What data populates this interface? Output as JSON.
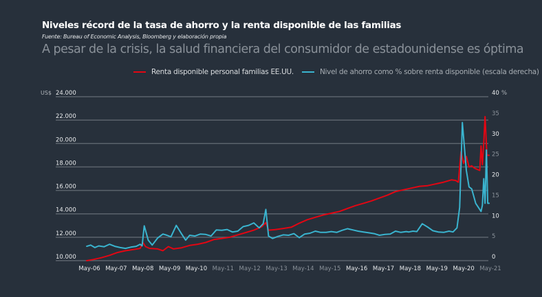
{
  "header": {
    "title": "Niveles récord de la tasa de ahorro y la renta disponible de las familias",
    "source": "Fuente: Bureau of Economic Analysis, Bloomberg y elaboración propia",
    "subtitle": "A pesar de la crisis, la salud financiera del consumidor de estadounidense es óptima"
  },
  "colors": {
    "background": "#27303b",
    "red_series": "#e30613",
    "cyan_series": "#3ab4cf",
    "grid": "#5b636c"
  },
  "chart_data": {
    "type": "line",
    "title": "Niveles récord de la tasa de ahorro y la renta disponible de las familias",
    "subtitle": "A pesar de la crisis, la salud financiera del consumidor de estadounidense es óptima",
    "legend_position": "top-right",
    "grid": true,
    "left_axis": {
      "unit_label": "US$",
      "ylim": [
        10000,
        24000
      ],
      "ticks": [
        "10.000",
        "12.000",
        "14.000",
        "16.000",
        "18.000",
        "20.000",
        "22.000",
        "24.000"
      ],
      "tick_values": [
        10000,
        12000,
        14000,
        16000,
        18000,
        20000,
        22000,
        24000
      ]
    },
    "right_axis": {
      "unit_label": "%",
      "ylim": [
        0,
        40
      ],
      "ticks": [
        "0",
        "5",
        "10",
        "15",
        "20",
        "25",
        "30",
        "35",
        "40"
      ],
      "tick_values": [
        0,
        5,
        10,
        15,
        20,
        25,
        30,
        35,
        40
      ]
    },
    "x_axis": {
      "xlim": [
        2006.35,
        2021.35
      ],
      "ticks": [
        "May-06",
        "May-07",
        "May-08",
        "May-09",
        "May-10",
        "May-11",
        "May-12",
        "May-13",
        "May-14",
        "May-15",
        "May-16",
        "May-17",
        "May-18",
        "May-19",
        "May-20",
        "May-21"
      ],
      "tick_values": [
        2006.35,
        2007.35,
        2008.35,
        2009.35,
        2010.35,
        2011.35,
        2012.35,
        2013.35,
        2014.35,
        2015.35,
        2016.35,
        2017.35,
        2018.35,
        2019.35,
        2020.35,
        2021.35
      ]
    },
    "series": [
      {
        "name": "Renta disponible personal familias EE.UU.",
        "axis": "left",
        "color": "#e30613",
        "x": [
          2006.25,
          2006.5,
          2006.8,
          2007.1,
          2007.4,
          2007.7,
          2008.0,
          2008.25,
          2008.35,
          2008.45,
          2008.6,
          2008.9,
          2009.1,
          2009.3,
          2009.5,
          2009.8,
          2010.1,
          2010.4,
          2010.7,
          2011.0,
          2011.3,
          2011.6,
          2011.9,
          2012.2,
          2012.5,
          2012.8,
          2012.95,
          2013.05,
          2013.3,
          2013.6,
          2013.9,
          2014.2,
          2014.5,
          2014.8,
          2015.1,
          2015.4,
          2015.7,
          2016.0,
          2016.3,
          2016.6,
          2016.9,
          2017.2,
          2017.5,
          2017.8,
          2018.1,
          2018.4,
          2018.7,
          2019.0,
          2019.3,
          2019.6,
          2019.9,
          2020.05,
          2020.15,
          2020.25,
          2020.35,
          2020.45,
          2020.55,
          2020.65,
          2020.75,
          2020.85,
          2020.95,
          2021.0,
          2021.05,
          2021.1,
          2021.15,
          2021.22,
          2021.3
        ],
        "values": [
          10000,
          10100,
          10250,
          10450,
          10700,
          10850,
          10950,
          11050,
          11550,
          11200,
          11050,
          11000,
          10850,
          11200,
          11000,
          11100,
          11300,
          11400,
          11550,
          11800,
          11900,
          12000,
          12200,
          12400,
          12600,
          12900,
          13250,
          12600,
          12650,
          12750,
          12850,
          13200,
          13500,
          13700,
          13900,
          14050,
          14200,
          14450,
          14700,
          14900,
          15100,
          15350,
          15600,
          15900,
          16050,
          16200,
          16350,
          16400,
          16550,
          16700,
          16900,
          16850,
          16700,
          19300,
          18300,
          18900,
          18000,
          18100,
          17900,
          17800,
          17700,
          19800,
          18200,
          20000,
          22300,
          19000,
          19000
        ]
      },
      {
        "name": "Nivel de ahorro como % sobre renta disponible (escala derecha)",
        "axis": "right",
        "color": "#3ab4cf",
        "x": [
          2006.25,
          2006.4,
          2006.55,
          2006.7,
          2006.9,
          2007.1,
          2007.3,
          2007.5,
          2007.7,
          2007.9,
          2008.1,
          2008.25,
          2008.32,
          2008.4,
          2008.55,
          2008.7,
          2008.9,
          2009.1,
          2009.25,
          2009.4,
          2009.6,
          2009.8,
          2009.95,
          2010.1,
          2010.3,
          2010.5,
          2010.7,
          2010.9,
          2011.1,
          2011.3,
          2011.5,
          2011.7,
          2011.9,
          2012.1,
          2012.3,
          2012.5,
          2012.7,
          2012.85,
          2012.95,
          2013.05,
          2013.2,
          2013.4,
          2013.6,
          2013.8,
          2014.0,
          2014.2,
          2014.4,
          2014.6,
          2014.8,
          2015.0,
          2015.2,
          2015.4,
          2015.6,
          2015.8,
          2016.0,
          2016.2,
          2016.4,
          2016.6,
          2016.8,
          2017.0,
          2017.2,
          2017.4,
          2017.6,
          2017.8,
          2018.0,
          2018.2,
          2018.3,
          2018.45,
          2018.6,
          2018.8,
          2019.0,
          2019.2,
          2019.4,
          2019.6,
          2019.8,
          2019.95,
          2020.1,
          2020.2,
          2020.3,
          2020.45,
          2020.55,
          2020.65,
          2020.8,
          2020.9,
          2021.0,
          2021.05,
          2021.1,
          2021.15,
          2021.2,
          2021.25,
          2021.3
        ],
        "values": [
          3.5,
          3.8,
          3.2,
          3.6,
          3.4,
          4.0,
          3.5,
          3.2,
          3.0,
          3.3,
          3.5,
          4.0,
          3.6,
          8.5,
          5.0,
          3.8,
          5.5,
          6.5,
          6.2,
          5.8,
          8.6,
          6.5,
          5.0,
          6.2,
          6.0,
          6.5,
          6.4,
          6.0,
          7.5,
          7.4,
          7.6,
          7.0,
          7.2,
          8.3,
          8.6,
          9.2,
          8.0,
          9.0,
          12.5,
          6.0,
          5.4,
          5.9,
          6.3,
          6.2,
          6.6,
          5.6,
          6.5,
          6.7,
          7.2,
          6.9,
          6.9,
          7.1,
          6.9,
          7.4,
          7.8,
          7.5,
          7.2,
          7.0,
          6.8,
          6.6,
          6.2,
          6.4,
          6.5,
          7.2,
          6.9,
          7.1,
          7.0,
          7.2,
          7.1,
          9.0,
          8.2,
          7.3,
          7.0,
          6.9,
          7.2,
          7.0,
          8.0,
          13.0,
          33.7,
          22.0,
          18.0,
          17.5,
          14.0,
          13.0,
          12.0,
          13.5,
          20.0,
          14.0,
          27.0,
          14.0,
          14.0
        ]
      }
    ]
  }
}
